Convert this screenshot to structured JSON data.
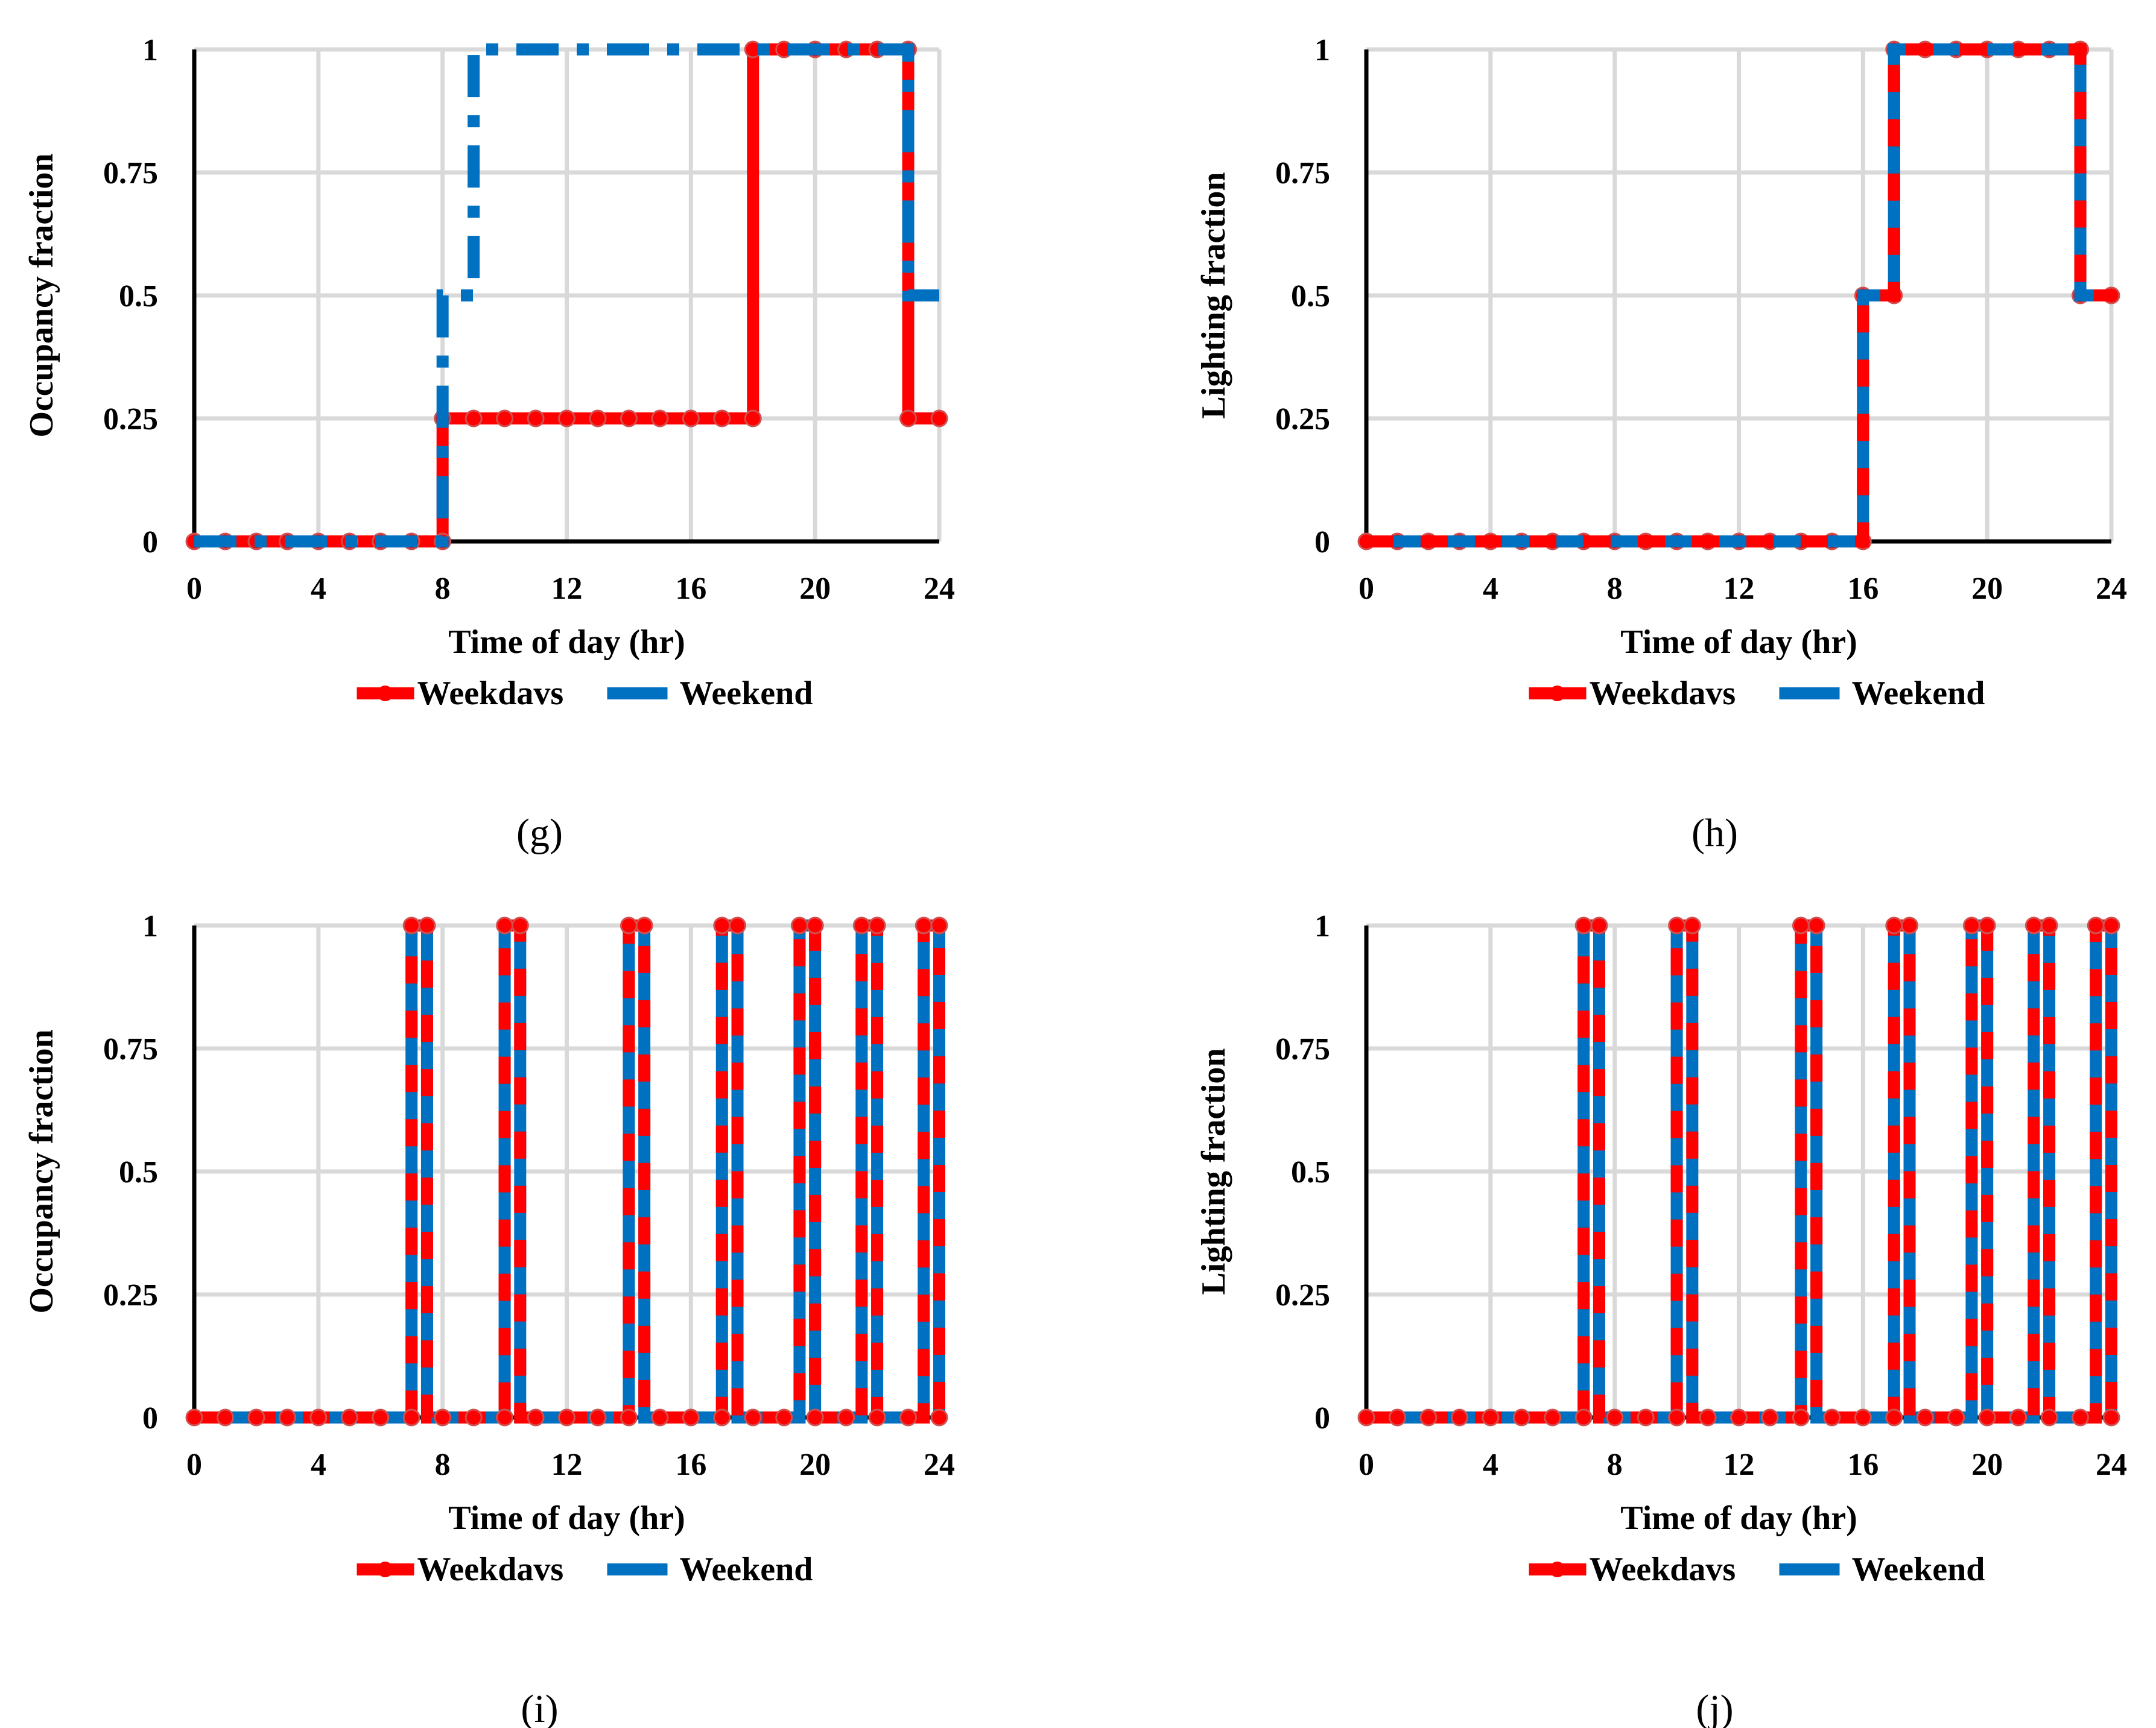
{
  "figure": {
    "colors": {
      "weekdays": "#ff0000",
      "weekend": "#0070c0",
      "grid": "#d9d9d9",
      "axis": "#000000"
    }
  },
  "chart_data": [
    {
      "type": "line",
      "panel_label": "(g)",
      "xlabel": "Time of  day (hr)",
      "ylabel": "Occupancy  fraction",
      "xlim": [
        0,
        24
      ],
      "ylim": [
        0,
        1
      ],
      "xticks": [
        "0",
        "4",
        "8",
        "12",
        "16",
        "20",
        "24"
      ],
      "yticks": [
        "0",
        "0.25",
        "0.5",
        "0.75",
        "1"
      ],
      "legend": [
        "Weekdavs",
        "Weekend"
      ],
      "series": [
        {
          "name": "Weekdavs",
          "style": "solid-markers",
          "x": [
            0,
            1,
            2,
            3,
            4,
            5,
            6,
            7,
            8,
            8,
            9,
            10,
            11,
            12,
            13,
            14,
            15,
            16,
            17,
            18,
            18,
            19,
            20,
            21,
            22,
            23,
            23,
            24
          ],
          "y": [
            0,
            0,
            0,
            0,
            0,
            0,
            0,
            0,
            0,
            0.25,
            0.25,
            0.25,
            0.25,
            0.25,
            0.25,
            0.25,
            0.25,
            0.25,
            0.25,
            0.25,
            1,
            1,
            1,
            1,
            1,
            1,
            0.25,
            0.25
          ]
        },
        {
          "name": "Weekend",
          "style": "dashdot",
          "x": [
            0,
            8,
            8,
            9,
            9,
            17,
            17,
            23,
            23,
            24
          ],
          "y": [
            0,
            0,
            0.5,
            0.5,
            1,
            1,
            1,
            1,
            0.5,
            0.5
          ]
        }
      ]
    },
    {
      "type": "line",
      "panel_label": "(h)",
      "xlabel": "Time of  day (hr)",
      "ylabel": "Lighting fraction",
      "xlim": [
        0,
        24
      ],
      "ylim": [
        0,
        1
      ],
      "xticks": [
        "0",
        "4",
        "8",
        "12",
        "16",
        "20",
        "24"
      ],
      "yticks": [
        "0",
        "0.25",
        "0.5",
        "0.75",
        "1"
      ],
      "legend": [
        "Weekdavs",
        "Weekend"
      ],
      "series": [
        {
          "name": "Weekdavs",
          "style": "striped-markers",
          "x": [
            0,
            1,
            2,
            3,
            4,
            5,
            6,
            7,
            8,
            9,
            10,
            11,
            12,
            13,
            14,
            15,
            16,
            16,
            17,
            17,
            18,
            19,
            20,
            21,
            22,
            23,
            23,
            24
          ],
          "y": [
            0,
            0,
            0,
            0,
            0,
            0,
            0,
            0,
            0,
            0,
            0,
            0,
            0,
            0,
            0,
            0,
            0,
            0.5,
            0.5,
            1,
            1,
            1,
            1,
            1,
            1,
            1,
            0.5,
            0.5
          ]
        },
        {
          "name": "Weekend",
          "style": "striped",
          "x": [
            0,
            16,
            16,
            17,
            17,
            23,
            23,
            24
          ],
          "y": [
            0,
            0,
            0.5,
            0.5,
            1,
            1,
            0.5,
            0.5
          ]
        }
      ]
    },
    {
      "type": "line",
      "panel_label": "(i)",
      "xlabel": "Time of  day (hr)",
      "ylabel": "Occupancy fraction",
      "xlim": [
        0,
        24
      ],
      "ylim": [
        0,
        1
      ],
      "xticks": [
        "0",
        "4",
        "8",
        "12",
        "16",
        "20",
        "24"
      ],
      "yticks": [
        "0",
        "0.25",
        "0.5",
        "0.75",
        "1"
      ],
      "legend": [
        "Weekdavs",
        "Weekend"
      ],
      "series": [
        {
          "name": "Weekdavs",
          "style": "striped-pulses",
          "pulses": [
            [
              7,
              7.5
            ],
            [
              10,
              10.5
            ],
            [
              14,
              14.5
            ],
            [
              17,
              17.5
            ],
            [
              19.5,
              20
            ],
            [
              21.5,
              22
            ],
            [
              23.5,
              24
            ]
          ]
        },
        {
          "name": "Weekend",
          "style": "striped-pulses",
          "pulses": [
            [
              7,
              7.5
            ],
            [
              10,
              10.5
            ],
            [
              14,
              14.5
            ],
            [
              17,
              17.5
            ],
            [
              19.5,
              20
            ],
            [
              21.5,
              22
            ],
            [
              23.5,
              24
            ]
          ]
        }
      ]
    },
    {
      "type": "line",
      "panel_label": "(j)",
      "xlabel": "Time of  day (hr)",
      "ylabel": "Lighting fraction",
      "xlim": [
        0,
        24
      ],
      "ylim": [
        0,
        1
      ],
      "xticks": [
        "0",
        "4",
        "8",
        "12",
        "16",
        "20",
        "24"
      ],
      "yticks": [
        "0",
        "0.25",
        "0.5",
        "0.75",
        "1"
      ],
      "legend": [
        "Weekdavs",
        "Weekend"
      ],
      "series": [
        {
          "name": "Weekdavs",
          "style": "striped-pulses",
          "pulses": [
            [
              7,
              7.5
            ],
            [
              10,
              10.5
            ],
            [
              14,
              14.5
            ],
            [
              17,
              17.5
            ],
            [
              19.5,
              20
            ],
            [
              21.5,
              22
            ],
            [
              23.5,
              24
            ]
          ]
        },
        {
          "name": "Weekend",
          "style": "striped-pulses",
          "pulses": [
            [
              7,
              7.5
            ],
            [
              10,
              10.5
            ],
            [
              14,
              14.5
            ],
            [
              17,
              17.5
            ],
            [
              19.5,
              20
            ],
            [
              21.5,
              22
            ],
            [
              23.5,
              24
            ]
          ]
        }
      ]
    }
  ]
}
